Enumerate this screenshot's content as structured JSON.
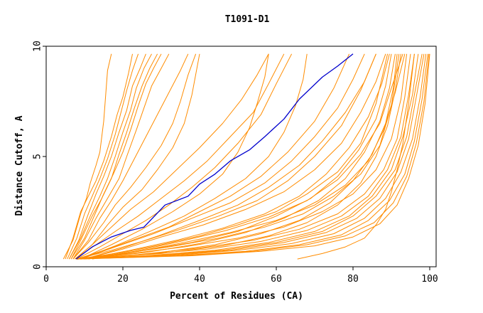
{
  "chart_data": {
    "type": "line",
    "title": "T1091-D1",
    "xlabel": "Percent of Residues (CA)",
    "ylabel": "Distance Cutoff, A",
    "xlim": [
      0,
      100
    ],
    "ylim": [
      0,
      10
    ],
    "xticks": [
      0,
      20,
      40,
      60,
      80,
      100
    ],
    "yticks": [
      0,
      5,
      10
    ],
    "grid": false,
    "legend": "none",
    "colors": {
      "models": "#ff8c00",
      "highlighted": "#0000cd"
    },
    "highlighted_series": {
      "x": [
        7.8,
        12,
        17,
        22,
        25.5,
        31,
        37,
        40,
        44,
        48,
        53,
        57,
        62,
        66,
        72,
        76,
        80
      ],
      "y": [
        0.35,
        0.9,
        1.35,
        1.65,
        1.8,
        2.8,
        3.2,
        3.75,
        4.2,
        4.8,
        5.3,
        5.9,
        6.7,
        7.6,
        8.6,
        9.1,
        9.65
      ]
    },
    "model_series": [
      {
        "x": [
          4.5,
          7,
          9,
          10.5,
          11.5,
          13,
          14,
          14.5,
          15,
          16,
          17
        ],
        "y": [
          0.35,
          1.2,
          2.4,
          3.1,
          3.8,
          4.6,
          5.2,
          5.9,
          6.6,
          8.9,
          9.65
        ]
      },
      {
        "x": [
          5,
          7,
          9,
          11,
          13,
          15,
          17,
          18.5,
          20,
          21.5,
          22.5
        ],
        "y": [
          0.35,
          1.3,
          2.5,
          3.2,
          3.9,
          4.8,
          5.9,
          6.9,
          7.7,
          8.8,
          9.65
        ]
      },
      {
        "x": [
          5.5,
          8,
          10,
          12,
          14,
          16,
          18,
          19.5,
          21,
          22.5,
          24
        ],
        "y": [
          0.35,
          1.3,
          2.4,
          3.2,
          4,
          4.9,
          6,
          7,
          8,
          8.9,
          9.65
        ]
      },
      {
        "x": [
          6,
          8.5,
          11,
          13,
          15,
          17,
          19,
          21,
          22.5,
          24.5,
          26
        ],
        "y": [
          0.35,
          1.2,
          2.4,
          3.3,
          4.1,
          5,
          6.1,
          7.1,
          8.2,
          9,
          9.65
        ]
      },
      {
        "x": [
          6,
          9,
          11.5,
          14,
          16,
          18,
          20,
          22,
          23.5,
          25.5,
          27.5
        ],
        "y": [
          0.35,
          1.3,
          2.3,
          3.2,
          4,
          5,
          6.1,
          7.1,
          8.1,
          9,
          9.65
        ]
      },
      {
        "x": [
          6.5,
          9,
          12,
          14.5,
          17,
          19,
          21,
          23,
          25,
          27,
          29
        ],
        "y": [
          0.35,
          1.2,
          2.3,
          3.1,
          4,
          5.1,
          6.1,
          7.2,
          8.2,
          9,
          9.65
        ]
      },
      {
        "x": [
          6.5,
          10,
          13,
          15,
          17.5,
          20,
          22,
          24,
          26,
          28,
          30
        ],
        "y": [
          0.35,
          1.3,
          2.5,
          3.3,
          4.2,
          5.2,
          6.2,
          7.3,
          8.3,
          9,
          9.65
        ]
      },
      {
        "x": [
          7,
          10,
          13,
          16,
          19,
          21,
          23.5,
          25.5,
          27.5,
          30,
          32
        ],
        "y": [
          0.35,
          1.2,
          2.2,
          3.1,
          4,
          5,
          6.2,
          7.2,
          8.2,
          9,
          9.65
        ]
      },
      {
        "x": [
          7,
          11,
          14,
          17,
          20,
          23,
          26,
          29,
          32,
          35,
          37
        ],
        "y": [
          0.35,
          1.2,
          2.2,
          3,
          3.9,
          4.9,
          5.9,
          6.9,
          7.9,
          8.9,
          9.65
        ]
      },
      {
        "x": [
          7,
          11,
          15,
          18,
          22,
          26,
          30,
          33,
          35,
          37,
          39
        ],
        "y": [
          0.35,
          1.1,
          2,
          2.8,
          3.6,
          4.5,
          5.5,
          6.5,
          7.5,
          8.7,
          9.65
        ]
      },
      {
        "x": [
          7.5,
          12,
          16,
          20,
          25,
          29,
          33,
          36,
          38,
          40
        ],
        "y": [
          0.35,
          1,
          1.9,
          2.7,
          3.5,
          4.4,
          5.4,
          6.5,
          7.8,
          9.65
        ]
      },
      {
        "x": [
          7.5,
          12,
          17,
          22,
          28,
          34,
          40,
          46,
          51,
          55,
          58
        ],
        "y": [
          0.35,
          1,
          1.8,
          2.6,
          3.4,
          4.4,
          5.4,
          6.5,
          7.6,
          8.7,
          9.65
        ]
      },
      {
        "x": [
          7.5,
          13,
          18,
          24,
          30,
          36,
          42,
          48,
          54,
          58,
          62
        ],
        "y": [
          0.35,
          1,
          1.6,
          2.3,
          3.1,
          3.9,
          4.8,
          5.9,
          7,
          8.3,
          9.65
        ]
      },
      {
        "x": [
          8,
          14,
          20,
          26,
          32,
          38,
          44,
          50,
          56,
          60,
          64
        ],
        "y": [
          0.35,
          0.9,
          1.5,
          2.1,
          2.8,
          3.6,
          4.5,
          5.6,
          6.9,
          8.3,
          9.65
        ]
      },
      {
        "x": [
          8,
          16,
          24,
          32,
          40,
          48,
          56,
          63,
          70,
          75,
          79
        ],
        "y": [
          0.35,
          0.8,
          1.3,
          1.8,
          2.5,
          3.2,
          4.1,
          5.2,
          6.6,
          8.1,
          9.65
        ]
      },
      {
        "x": [
          8,
          17,
          26,
          35,
          45,
          55,
          63,
          70,
          77,
          82,
          86
        ],
        "y": [
          0.35,
          0.75,
          1.2,
          1.7,
          2.3,
          3,
          3.9,
          5,
          6.4,
          8,
          9.65
        ]
      },
      {
        "x": [
          8,
          20,
          30,
          40,
          50,
          60,
          68,
          76,
          82,
          86,
          89
        ],
        "y": [
          0.35,
          0.65,
          1,
          1.4,
          1.9,
          2.5,
          3.3,
          4.3,
          5.6,
          7.4,
          9.65
        ]
      },
      {
        "x": [
          8,
          20,
          32,
          45,
          57,
          67,
          75,
          82,
          87,
          90,
          92
        ],
        "y": [
          0.35,
          0.6,
          0.9,
          1.3,
          1.8,
          2.4,
          3.2,
          4.2,
          5.5,
          7.3,
          9.65
        ]
      },
      {
        "x": [
          8,
          22,
          36,
          50,
          62,
          72,
          80,
          86,
          90,
          92.5,
          94
        ],
        "y": [
          0.35,
          0.6,
          0.9,
          1.3,
          1.8,
          2.5,
          3.3,
          4.4,
          5.8,
          7.6,
          9.65
        ]
      },
      {
        "x": [
          8,
          24,
          40,
          54,
          66,
          76,
          83,
          88,
          91.5,
          93.5,
          95
        ],
        "y": [
          0.35,
          0.55,
          0.85,
          1.2,
          1.7,
          2.4,
          3.3,
          4.4,
          5.8,
          7.7,
          9.65
        ]
      },
      {
        "x": [
          8,
          25,
          42,
          56,
          68,
          77,
          84,
          89,
          92.5,
          94.5,
          96
        ],
        "y": [
          0.35,
          0.55,
          0.8,
          1.15,
          1.65,
          2.3,
          3.2,
          4.4,
          5.9,
          7.8,
          9.65
        ]
      },
      {
        "x": [
          8,
          26,
          44,
          58,
          70,
          79,
          85,
          90,
          93,
          95.5,
          97
        ],
        "y": [
          0.35,
          0.5,
          0.75,
          1.1,
          1.6,
          2.3,
          3.2,
          4.4,
          5.9,
          7.8,
          9.65
        ]
      },
      {
        "x": [
          8,
          28,
          46,
          60,
          72,
          80,
          86,
          91,
          94,
          96,
          98
        ],
        "y": [
          0.35,
          0.5,
          0.75,
          1.1,
          1.6,
          2.3,
          3.2,
          4.4,
          5.9,
          7.8,
          9.65
        ]
      },
      {
        "x": [
          8,
          30,
          48,
          62,
          73,
          81,
          87,
          91.5,
          94.5,
          96.5,
          98.5
        ],
        "y": [
          0.35,
          0.5,
          0.75,
          1.1,
          1.55,
          2.2,
          3.1,
          4.3,
          5.8,
          7.7,
          9.65
        ]
      },
      {
        "x": [
          8,
          32,
          50,
          64,
          75,
          83,
          88.5,
          92.5,
          95.5,
          97.5,
          99
        ],
        "y": [
          0.35,
          0.5,
          0.75,
          1.05,
          1.5,
          2.2,
          3.1,
          4.3,
          5.8,
          7.7,
          9.65
        ]
      },
      {
        "x": [
          8,
          34,
          52,
          66,
          77,
          84,
          89.5,
          93.5,
          96,
          98,
          99.5
        ],
        "y": [
          0.35,
          0.5,
          0.7,
          1,
          1.45,
          2.1,
          3,
          4.2,
          5.7,
          7.6,
          9.65
        ]
      },
      {
        "x": [
          8,
          36,
          54,
          68,
          78,
          85.5,
          90.5,
          94,
          96.5,
          98.5,
          99.8
        ],
        "y": [
          0.35,
          0.5,
          0.7,
          1,
          1.4,
          2,
          2.9,
          4.1,
          5.6,
          7.5,
          9.65
        ]
      },
      {
        "x": [
          8,
          38,
          56,
          70,
          80,
          87,
          91.5,
          94.5,
          97,
          98.8,
          100
        ],
        "y": [
          0.35,
          0.5,
          0.7,
          0.95,
          1.35,
          1.95,
          2.8,
          4,
          5.5,
          7.4,
          9.65
        ]
      },
      {
        "x": [
          9,
          30,
          46,
          58,
          68,
          76,
          82,
          86,
          89,
          91,
          92.5
        ],
        "y": [
          0.35,
          0.6,
          0.95,
          1.4,
          2,
          2.8,
          3.8,
          5,
          6.4,
          8,
          9.65
        ]
      },
      {
        "x": [
          9,
          28,
          44,
          56,
          66,
          74,
          80,
          85,
          88.5,
          90.5,
          91.5
        ],
        "y": [
          0.35,
          0.6,
          1,
          1.5,
          2.1,
          2.9,
          3.9,
          5.1,
          6.5,
          8.1,
          9.65
        ]
      },
      {
        "x": [
          9,
          26,
          40,
          52,
          62,
          71,
          78,
          83,
          87,
          89.5,
          91
        ],
        "y": [
          0.35,
          0.65,
          1.05,
          1.55,
          2.2,
          3,
          4,
          5.2,
          6.6,
          8.1,
          9.65
        ]
      },
      {
        "x": [
          9,
          24,
          38,
          50,
          60,
          69,
          76,
          81.5,
          86,
          88.5,
          90
        ],
        "y": [
          0.35,
          0.7,
          1.1,
          1.6,
          2.3,
          3.1,
          4.1,
          5.3,
          6.7,
          8.2,
          9.65
        ]
      },
      {
        "x": [
          10,
          22,
          34,
          46,
          57,
          66,
          73,
          79,
          84,
          87.5,
          89.5
        ],
        "y": [
          0.35,
          0.75,
          1.2,
          1.75,
          2.4,
          3.2,
          4.2,
          5.4,
          6.8,
          8.3,
          9.65
        ]
      },
      {
        "x": [
          10,
          20,
          30,
          41,
          52,
          62,
          70,
          77,
          82,
          86,
          88.5
        ],
        "y": [
          0.35,
          0.8,
          1.35,
          1.9,
          2.6,
          3.4,
          4.4,
          5.6,
          7,
          8.4,
          9.65
        ]
      },
      {
        "x": [
          10,
          20,
          30,
          40,
          50,
          58,
          66,
          72,
          78,
          83,
          86
        ],
        "y": [
          0.35,
          0.85,
          1.45,
          2.1,
          2.8,
          3.6,
          4.6,
          5.7,
          7,
          8.4,
          9.65
        ]
      },
      {
        "x": [
          9,
          18,
          28,
          38,
          48,
          57,
          64,
          70,
          76,
          80,
          83
        ],
        "y": [
          0.35,
          0.9,
          1.5,
          2.2,
          2.9,
          3.8,
          4.8,
          5.9,
          7.2,
          8.5,
          9.65
        ]
      },
      {
        "x": [
          9,
          18,
          27,
          36,
          44,
          52,
          58,
          62,
          65,
          67,
          68
        ],
        "y": [
          0.35,
          0.95,
          1.6,
          2.3,
          3.1,
          4,
          5,
          6.1,
          7.3,
          8.5,
          9.65
        ]
      },
      {
        "x": [
          9,
          17,
          25,
          33,
          40,
          46,
          50,
          53,
          55,
          57,
          58
        ],
        "y": [
          0.35,
          1,
          1.7,
          2.5,
          3.3,
          4.2,
          5.2,
          6.3,
          7.4,
          8.6,
          9.65
        ]
      },
      {
        "x": [
          65.5,
          72,
          78,
          83,
          86,
          88.5,
          90,
          91.5,
          93,
          94.5,
          96
        ],
        "y": [
          0.35,
          0.6,
          0.9,
          1.3,
          1.9,
          2.6,
          3.4,
          4.4,
          5.6,
          7.4,
          9.65
        ]
      },
      {
        "x": [
          12,
          24,
          36,
          48,
          60,
          70,
          78,
          84,
          88,
          91,
          93.5
        ],
        "y": [
          0.35,
          0.7,
          1.1,
          1.55,
          2.1,
          2.8,
          3.7,
          4.8,
          6.2,
          7.9,
          9.65
        ]
      },
      {
        "x": [
          11,
          23,
          35,
          47,
          58,
          68,
          76,
          82,
          87,
          90,
          93
        ],
        "y": [
          0.35,
          0.7,
          1.15,
          1.65,
          2.25,
          3,
          3.95,
          5.1,
          6.5,
          8.1,
          9.65
        ]
      }
    ]
  }
}
